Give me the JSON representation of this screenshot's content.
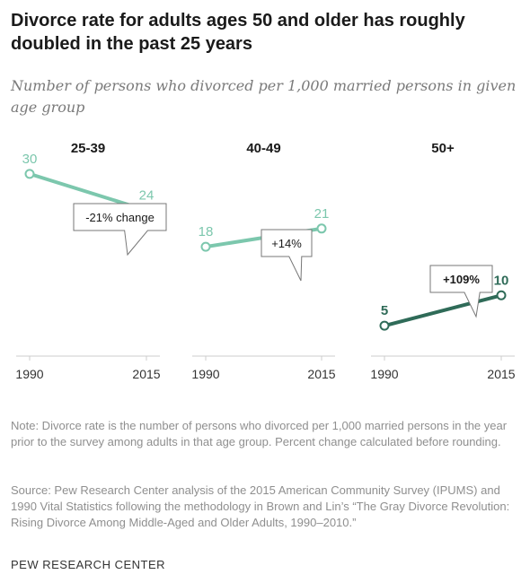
{
  "title": "Divorce rate for adults ages 50 and older has roughly doubled in the past 25 years",
  "subtitle": "Number of persons who divorced per 1,000 married persons in given age group",
  "note": "Note: Divorce rate is the number of persons who divorced per 1,000 married persons in the year prior to the survey among adults in that age group. Percent change calculated before rounding.",
  "source": "Source: Pew Research Center analysis of the 2015 American Community Survey (IPUMS) and 1990 Vital Statistics following the methodology in Brown and Lin’s “The Gray Divorce Revolution: Rising Divorce Among Middle-Aged and Older Adults, 1990–2010.”",
  "credit": "PEW RESEARCH CENTER",
  "chart_data": {
    "type": "line",
    "x": [
      "1990",
      "2015"
    ],
    "ylim": [
      0,
      35
    ],
    "grid": false,
    "panels": [
      {
        "label": "25-39",
        "values": [
          30,
          24
        ],
        "value_labels": [
          "30",
          "24"
        ],
        "callout": "-21% change",
        "color": "#7cc7ad",
        "label_color": "#7cc7ad"
      },
      {
        "label": "40-49",
        "values": [
          18,
          21
        ],
        "value_labels": [
          "18",
          "21"
        ],
        "callout": "+14%",
        "color": "#7cc7ad",
        "label_color": "#7cc7ad"
      },
      {
        "label": "50+",
        "values": [
          5,
          10
        ],
        "value_labels": [
          "5",
          "10"
        ],
        "callout": "+109%",
        "color": "#2f6b58",
        "label_color": "#2f6b58"
      }
    ]
  }
}
